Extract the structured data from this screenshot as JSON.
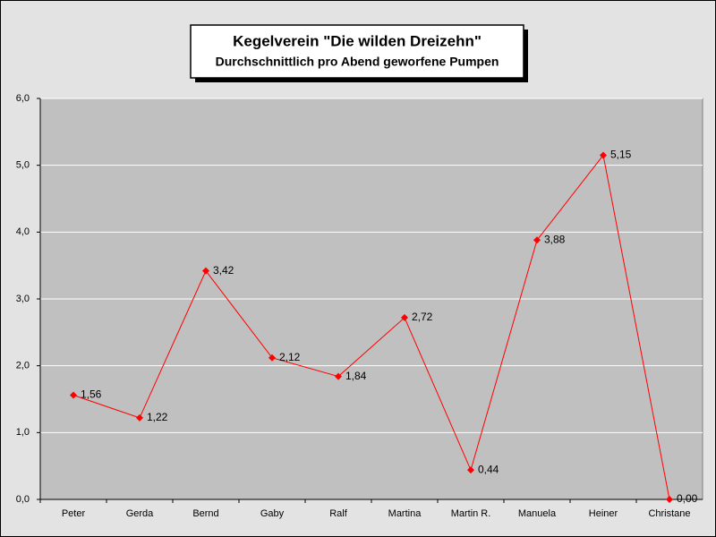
{
  "chart_data": {
    "type": "line",
    "title": "Kegelverein \"Die wilden Dreizehn\"",
    "subtitle": "Durchschnittlich pro Abend geworfene Pumpen",
    "categories": [
      "Peter",
      "Gerda",
      "Bernd",
      "Gaby",
      "Ralf",
      "Martina",
      "Martin R.",
      "Manuela",
      "Heiner",
      "Christane"
    ],
    "values": [
      1.56,
      1.22,
      3.42,
      2.12,
      1.84,
      2.72,
      0.44,
      3.88,
      5.15,
      0
    ],
    "value_labels": [
      "1,56",
      "1,22",
      "3,42",
      "2,12",
      "1,84",
      "2,72",
      "0,44",
      "3,88",
      "5,15",
      "0,00"
    ],
    "color": "#ff0000",
    "ylim": [
      0,
      6
    ],
    "yticks": [
      {
        "value": 0,
        "label": "0,0"
      },
      {
        "value": 1,
        "label": "1,0"
      },
      {
        "value": 2,
        "label": "2,0"
      },
      {
        "value": 3,
        "label": "3,0"
      },
      {
        "value": 4,
        "label": "4,0"
      },
      {
        "value": 5,
        "label": "5,0"
      },
      {
        "value": 6,
        "label": "6,0"
      }
    ],
    "grid": true
  }
}
